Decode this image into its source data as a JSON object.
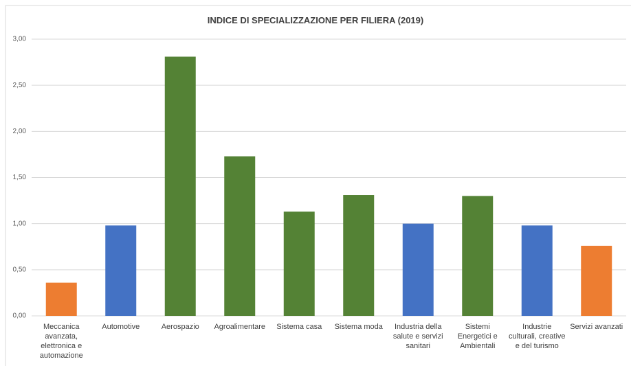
{
  "chart_data": {
    "type": "bar",
    "title": "INDICE DI SPECIALIZZAZIONE PER FILIERA (2019)",
    "categories": [
      "Meccanica avanzata, elettronica e automazione",
      "Automotive",
      "Aerospazio",
      "Agroalimentare",
      "Sistema casa",
      "Sistema moda",
      "Industria della salute e servizi sanitari",
      "Sistemi Energetici e Ambientali",
      "Industrie culturali, creative e del turismo",
      "Servizi avanzati"
    ],
    "values": [
      0.36,
      0.98,
      2.81,
      1.73,
      1.13,
      1.31,
      1.0,
      1.3,
      0.98,
      0.76
    ],
    "colors": [
      "#ed7d31",
      "#4472c4",
      "#548235",
      "#548235",
      "#548235",
      "#548235",
      "#4472c4",
      "#548235",
      "#4472c4",
      "#ed7d31"
    ],
    "ylim": [
      0,
      3
    ],
    "yticks": [
      {
        "value": 0,
        "label": "0,00"
      },
      {
        "value": 0.5,
        "label": "0,50"
      },
      {
        "value": 1,
        "label": "1,00"
      },
      {
        "value": 1.5,
        "label": "1,50"
      },
      {
        "value": 2,
        "label": "2,00"
      },
      {
        "value": 2.5,
        "label": "2,50"
      },
      {
        "value": 3,
        "label": "3,00"
      }
    ],
    "grid": true
  }
}
